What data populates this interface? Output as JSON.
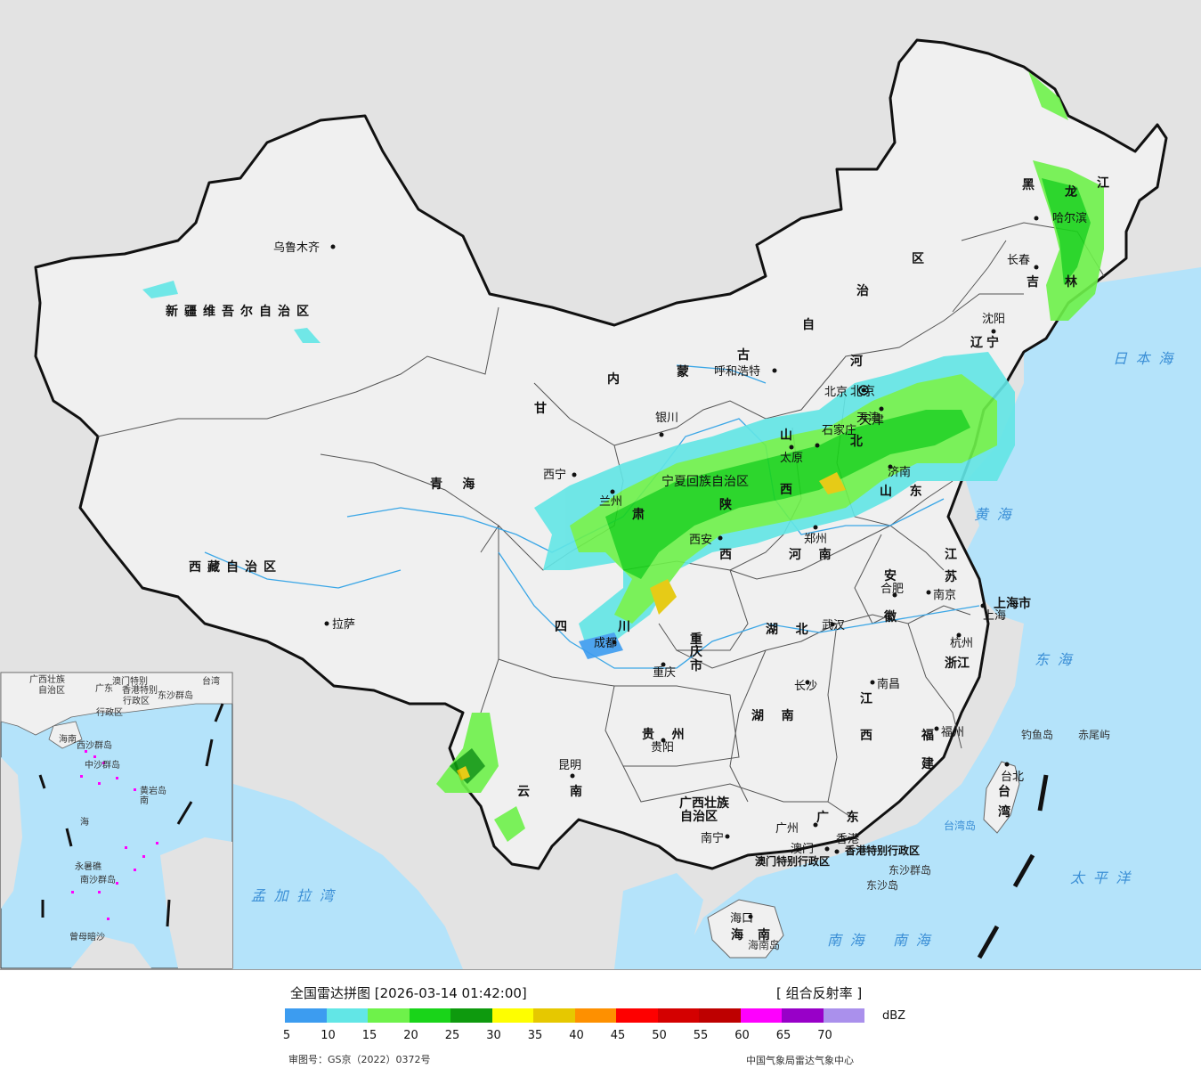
{
  "title": "全国雷达拼图 [2026-03-14 01:42:00]",
  "product": "[ 组合反射率 ]",
  "unit": "dBZ",
  "legend": {
    "colors": [
      "#3c9cf0",
      "#62e6e6",
      "#6ef24a",
      "#19d419",
      "#0e9a0e",
      "#fefe00",
      "#e6c800",
      "#fe9000",
      "#fe0000",
      "#d40000",
      "#be0000",
      "#fe00fe",
      "#9800c8",
      "#aa90ec"
    ],
    "ticks": [
      "5",
      "10",
      "15",
      "20",
      "25",
      "30",
      "35",
      "40",
      "45",
      "50",
      "55",
      "60",
      "65",
      "70"
    ]
  },
  "credits": {
    "review_number": "审图号：GS京（2022）0372号",
    "agency": "中国气象局雷达气象中心"
  },
  "colors": {
    "sea": "#b4e3fa",
    "land": "#f0f0f0",
    "foreign": "#e3e3e3"
  },
  "regions": [
    {
      "name": "新疆维吾尔自治区",
      "spaced": true
    },
    {
      "name": "西藏自治区",
      "spaced": true
    },
    {
      "name": "青海",
      "spaced": true
    },
    {
      "name": "甘",
      "spaced": false
    },
    {
      "name": "肃",
      "spaced": false
    },
    {
      "name": "内",
      "spaced": false
    },
    {
      "name": "蒙",
      "spaced": false
    },
    {
      "name": "古",
      "spaced": false
    },
    {
      "name": "自",
      "spaced": false
    },
    {
      "name": "治",
      "spaced": false
    },
    {
      "name": "区",
      "spaced": false
    },
    {
      "name": "黑",
      "spaced": false
    },
    {
      "name": "龙",
      "spaced": false
    },
    {
      "name": "江",
      "spaced": false
    },
    {
      "name": "吉",
      "spaced": false
    },
    {
      "name": "林",
      "spaced": false
    },
    {
      "name": "辽",
      "spaced": false
    },
    {
      "name": "宁",
      "spaced": false
    },
    {
      "name": "河",
      "spaced": false
    },
    {
      "name": "北",
      "spaced": false
    },
    {
      "name": "山",
      "spaced": false
    },
    {
      "name": "西",
      "spaced": false
    },
    {
      "name": "陕",
      "spaced": false
    },
    {
      "name": "西",
      "spaced": false
    },
    {
      "name": "河南",
      "spaced": true
    },
    {
      "name": "山东",
      "spaced": true
    },
    {
      "name": "江",
      "spaced": false
    },
    {
      "name": "苏",
      "spaced": false
    },
    {
      "name": "安",
      "spaced": false
    },
    {
      "name": "徽",
      "spaced": false
    },
    {
      "name": "上海市",
      "spaced": false
    },
    {
      "name": "浙江",
      "spaced": false
    },
    {
      "name": "湖北",
      "spaced": true
    },
    {
      "name": "湖南",
      "spaced": true
    },
    {
      "name": "江",
      "spaced": false
    },
    {
      "name": "西",
      "spaced": false
    },
    {
      "name": "四",
      "spaced": false
    },
    {
      "name": "川",
      "spaced": false
    },
    {
      "name": "重",
      "spaced": false
    },
    {
      "name": "庆",
      "spaced": false
    },
    {
      "name": "市",
      "spaced": false
    },
    {
      "name": "贵州",
      "spaced": true
    },
    {
      "name": "云",
      "spaced": false
    },
    {
      "name": "南",
      "spaced": false
    },
    {
      "name": "广西壮族",
      "spaced": false
    },
    {
      "name": "自治区",
      "spaced": false
    },
    {
      "name": "广东",
      "spaced": true
    },
    {
      "name": "福",
      "spaced": false
    },
    {
      "name": "建",
      "spaced": false
    },
    {
      "name": "台",
      "spaced": false
    },
    {
      "name": "湾",
      "spaced": false
    },
    {
      "name": "海",
      "spaced": false
    },
    {
      "name": "南",
      "spaced": false
    },
    {
      "name": "宁夏回族自治区",
      "spaced": false
    },
    {
      "name": "天津",
      "spaced": false
    },
    {
      "name": "北京",
      "spaced": false
    }
  ],
  "cities": [
    "乌鲁木齐",
    "拉萨",
    "西宁",
    "兰州",
    "银川",
    "呼和浩特",
    "北京",
    "天津",
    "石家庄",
    "太原",
    "济南",
    "西安",
    "郑州",
    "合肥",
    "南京",
    "上海",
    "杭州",
    "武汉",
    "成都",
    "重庆",
    "长沙",
    "南昌",
    "福州",
    "台北",
    "贵阳",
    "昆明",
    "南宁",
    "广州",
    "澳门",
    "香港",
    "海口",
    "哈尔滨",
    "长春",
    "沈阳"
  ],
  "seas": [
    "日本海",
    "黄海",
    "东海",
    "太平洋",
    "南海",
    "孟加拉湾",
    "南海"
  ],
  "other_labels": [
    "钓鱼岛",
    "赤尾屿",
    "台湾岛",
    "香港特别行政区",
    "澳门特别行政区",
    "东沙群岛",
    "东沙岛",
    "海南岛"
  ],
  "inset_labels": [
    "广西壮族",
    "自治区",
    "广东",
    "澳门特别",
    "行政区",
    "香港特别",
    "行政区",
    "东沙群岛",
    "海南",
    "西沙群岛",
    "中沙群岛",
    "黄岩岛",
    "南",
    "海",
    "永暑礁",
    "南沙群岛",
    "曾母暗沙",
    "台湾"
  ]
}
